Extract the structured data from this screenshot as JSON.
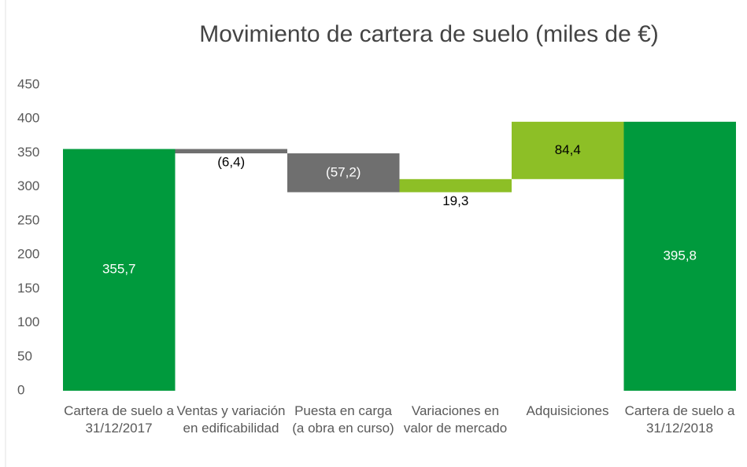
{
  "chart_data": {
    "type": "waterfall",
    "title": "Movimiento de cartera de suelo (miles de €)",
    "categories": [
      "Cartera de suelo a 31/12/2017",
      "Ventas y variación en edificabilidad",
      "Puesta en carga (a obra en curso)",
      "Variaciones en valor de mercado",
      "Adquisiciones",
      "Cartera de suelo a 31/12/2018"
    ],
    "values": [
      355.7,
      -6.4,
      -57.2,
      19.3,
      84.4,
      395.8
    ],
    "value_labels": [
      "355,7",
      "(6,4)",
      "(57,2)",
      "19,3",
      "84,4",
      "395,8"
    ],
    "is_total": [
      true,
      false,
      false,
      false,
      false,
      true
    ],
    "colors": {
      "total": "#009a3d",
      "decrease": "#6f6f6f",
      "increase": "#8dbf26"
    },
    "ylim": [
      0,
      450
    ],
    "yticks": [
      0,
      50,
      100,
      150,
      200,
      250,
      300,
      350,
      400,
      450
    ],
    "grid": false
  }
}
